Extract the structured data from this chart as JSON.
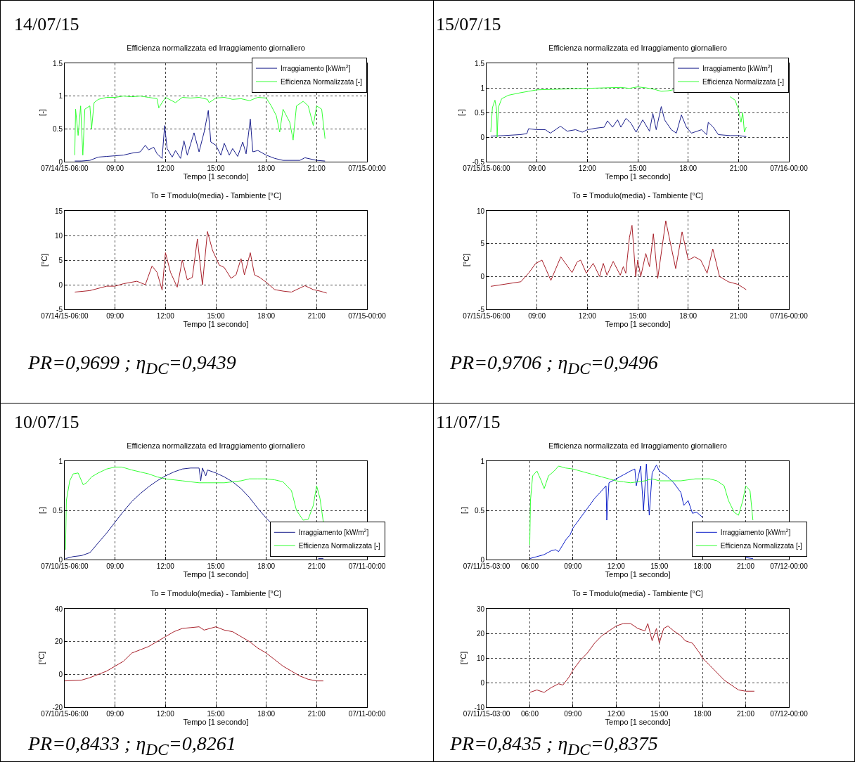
{
  "chart_data": [
    {
      "type": "line",
      "title": "Efficienza normalizzata ed Irraggiamento giornaliero",
      "xlabel": "Tempo [1 secondo]",
      "ylabel": "[-]",
      "annotations": [
        "14/07/15"
      ],
      "xlim": [
        6,
        24
      ],
      "xticks": [
        {
          "value": 6,
          "label": "07/14/15-06:00"
        },
        {
          "value": 9,
          "label": "09:00"
        },
        {
          "value": 12,
          "label": "12:00"
        },
        {
          "value": 15,
          "label": "15:00"
        },
        {
          "value": 18,
          "label": "18:00"
        },
        {
          "value": 21,
          "label": "21:00"
        },
        {
          "value": 24,
          "label": "07/15-00:00"
        }
      ],
      "ylim": [
        0,
        1.5
      ],
      "yticks": [
        0,
        0.5,
        1,
        1.5
      ],
      "grid": true,
      "legend": "top right",
      "marker": "none",
      "line_style": "solid",
      "series": [
        {
          "name": "Irraggiamento [kW/m$^{2}$]",
          "color": "#1a1f8c",
          "x": [
            6.6,
            7,
            7.5,
            8,
            8.5,
            9,
            9.5,
            10,
            10.5,
            10.8,
            11,
            11.3,
            11.5,
            11.8,
            11.95,
            12.1,
            12.4,
            12.6,
            12.9,
            13.1,
            13.3,
            13.7,
            14,
            14.3,
            14.55,
            14.7,
            15,
            15.3,
            15.5,
            15.8,
            16,
            16.3,
            16.6,
            16.8,
            17.05,
            17.2,
            17.5,
            18,
            18.5,
            19,
            20,
            20.3,
            21,
            21.5
          ],
          "values": [
            0.01,
            0.01,
            0.02,
            0.07,
            0.08,
            0.09,
            0.1,
            0.13,
            0.15,
            0.25,
            0.18,
            0.22,
            0.12,
            0.05,
            0.55,
            0.2,
            0.07,
            0.17,
            0.05,
            0.32,
            0.1,
            0.44,
            0.15,
            0.45,
            0.78,
            0.3,
            0.25,
            0.1,
            0.28,
            0.1,
            0.2,
            0.08,
            0.3,
            0.12,
            0.65,
            0.15,
            0.17,
            0.1,
            0.05,
            0.02,
            0.02,
            0.06,
            0.02,
            0.01
          ]
        },
        {
          "name": "Efficienza Normalizzata [-]",
          "color": "#33ff33",
          "x": [
            6.6,
            6.65,
            6.8,
            6.95,
            7.08,
            7.2,
            7.5,
            7.6,
            7.75,
            8,
            8.5,
            9,
            9.5,
            10,
            10.5,
            11,
            11.5,
            11.6,
            12,
            12.6,
            13,
            13.5,
            14,
            14.5,
            14.6,
            15,
            15.5,
            16,
            16.5,
            17,
            17.5,
            18,
            18.3,
            18.6,
            18.8,
            19,
            19.4,
            19.6,
            19.8,
            20.2,
            20.5,
            20.8,
            21,
            21.3,
            21.5
          ],
          "values": [
            0.1,
            0.8,
            0.4,
            0.85,
            0.1,
            0.8,
            0.85,
            0.5,
            0.9,
            0.95,
            0.98,
            0.98,
            1,
            0.99,
            1,
            0.98,
            0.96,
            0.82,
            0.98,
            0.9,
            0.98,
            0.97,
            0.98,
            0.95,
            0.9,
            0.97,
            0.98,
            0.95,
            0.96,
            0.93,
            0.98,
            0.97,
            0.85,
            0.7,
            0.45,
            0.8,
            0.6,
            0.33,
            0.85,
            0.92,
            0.85,
            0.55,
            0.85,
            0.8,
            0.35
          ]
        }
      ]
    },
    {
      "type": "line",
      "title": "To = Tmodulo(media) - Tambiente [°C]",
      "xlabel": "Tempo [1 secondo]",
      "ylabel": "[°C]",
      "annotations": [
        "PR=0,9699 ; η$_{DC}$=0,9439"
      ],
      "xlim": [
        6,
        24
      ],
      "xticks": [
        {
          "value": 6,
          "label": "07/14/15-06:00"
        },
        {
          "value": 9,
          "label": "09:00"
        },
        {
          "value": 12,
          "label": "12:00"
        },
        {
          "value": 15,
          "label": "15:00"
        },
        {
          "value": 18,
          "label": "18:00"
        },
        {
          "value": 21,
          "label": "21:00"
        },
        {
          "value": 24,
          "label": "07/15-00:00"
        }
      ],
      "ylim": [
        -5,
        15
      ],
      "yticks": [
        -5,
        0,
        5,
        10,
        15
      ],
      "grid": true,
      "marker": "none",
      "line_style": "solid",
      "series": [
        {
          "color": "#a8202a",
          "x": [
            6.6,
            7.5,
            8.5,
            9,
            9.5,
            10.3,
            10.8,
            11.2,
            11.5,
            11.8,
            12,
            12.3,
            12.7,
            13,
            13.3,
            13.6,
            13.9,
            14.2,
            14.5,
            14.8,
            15,
            15.2,
            15.5,
            15.9,
            16.2,
            16.5,
            16.7,
            17.05,
            17.3,
            17.6,
            18,
            18.5,
            19,
            19.5,
            20.3,
            20.8,
            21.2,
            21.6
          ],
          "values": [
            -1.5,
            -1.2,
            -0.3,
            -0.3,
            0.2,
            0.7,
            0,
            3.8,
            2.5,
            -1.1,
            6.5,
            2.5,
            -0.5,
            5,
            1,
            1.5,
            9.3,
            0,
            10.8,
            7,
            5.5,
            4,
            3.5,
            1.3,
            2,
            5.3,
            2,
            6.5,
            2,
            1.5,
            0.5,
            -1,
            -1.3,
            -1.5,
            -0.2,
            -1,
            -1.3,
            -1.7
          ]
        }
      ]
    },
    {
      "type": "line",
      "title": "Efficienza normalizzata ed Irraggiamento giornaliero",
      "xlabel": "Tempo [1 secondo]",
      "ylabel": "[-]",
      "annotations": [
        "15/07/15"
      ],
      "xlim": [
        6,
        24
      ],
      "xticks": [
        {
          "value": 6,
          "label": "07/15/15-06:00"
        },
        {
          "value": 9,
          "label": "09:00"
        },
        {
          "value": 12,
          "label": "12:00"
        },
        {
          "value": 15,
          "label": "15:00"
        },
        {
          "value": 18,
          "label": "18:00"
        },
        {
          "value": 21,
          "label": "21:00"
        },
        {
          "value": 24,
          "label": "07/16-00:00"
        }
      ],
      "ylim": [
        -0.5,
        1.5
      ],
      "yticks": [
        -0.5,
        0,
        0.5,
        1,
        1.5
      ],
      "grid": true,
      "legend": "top right",
      "marker": "none",
      "line_style": "solid",
      "series": [
        {
          "name": "Irraggiamento [kW/m$^{2}$]",
          "color": "#1a1f8c",
          "x": [
            6.25,
            7,
            8,
            8.4,
            8.5,
            9,
            9.5,
            9.8,
            10.4,
            10.8,
            11.3,
            11.7,
            12,
            12.5,
            13,
            13.2,
            13.5,
            13.8,
            14,
            14.3,
            14.6,
            14.9,
            15.3,
            15.7,
            15.9,
            16.1,
            16.4,
            16.6,
            17,
            17.3,
            17.6,
            17.9,
            18.2,
            18.8,
            19.1,
            19.2,
            19.5,
            19.8,
            20.5,
            21,
            21.46
          ],
          "values": [
            0.02,
            0.03,
            0.05,
            0.07,
            0.17,
            0.15,
            0.15,
            0.08,
            0.22,
            0.12,
            0.15,
            0.1,
            0.15,
            0.18,
            0.2,
            0.33,
            0.2,
            0.35,
            0.2,
            0.38,
            0.28,
            0.1,
            0.35,
            0.12,
            0.48,
            0.15,
            0.62,
            0.35,
            0.15,
            0.08,
            0.45,
            0.2,
            0.08,
            0.15,
            0.05,
            0.3,
            0.2,
            0.05,
            0.03,
            0.03,
            0.01
          ]
        },
        {
          "name": "Efficienza Normalizzata [-]",
          "color": "#33ff33",
          "x": [
            6.25,
            6.35,
            6.5,
            6.6,
            6.63,
            6.7,
            6.9,
            7.3,
            8,
            8.5,
            9,
            10,
            11,
            12,
            13,
            14,
            14.5,
            15,
            15.5,
            16,
            16.4,
            16.8,
            17.1,
            17.3,
            19,
            19.1,
            19.8,
            20.5,
            20.8,
            21,
            21.15,
            21.25,
            21.35,
            21.46
          ],
          "values": [
            0.1,
            0.6,
            0.75,
            0.55,
            0,
            0.6,
            0.78,
            0.85,
            0.9,
            0.93,
            0.96,
            0.97,
            0.98,
            0.99,
            1,
            1.01,
            0.99,
            1.02,
            1,
            0.97,
            0.93,
            0.94,
            0.96,
            null,
            null,
            null,
            null,
            0.82,
            0.75,
            0.55,
            0.3,
            0.5,
            0.1,
            0.2
          ]
        }
      ]
    },
    {
      "type": "line",
      "title": "To = Tmodulo(media) - Tambiente [°C]",
      "xlabel": "Tempo [1 secondo]",
      "ylabel": "[°C]",
      "annotations": [
        "PR=0,9706 ; η$_{DC}$=0,9496"
      ],
      "xlim": [
        6,
        24
      ],
      "xticks": [
        {
          "value": 6,
          "label": "07/15/15-06:00"
        },
        {
          "value": 9,
          "label": "09:00"
        },
        {
          "value": 12,
          "label": "12:00"
        },
        {
          "value": 15,
          "label": "15:00"
        },
        {
          "value": 18,
          "label": "18:00"
        },
        {
          "value": 21,
          "label": "21:00"
        },
        {
          "value": 24,
          "label": "07/16-00:00"
        }
      ],
      "ylim": [
        -5,
        10
      ],
      "yticks": [
        -5,
        0,
        5,
        10
      ],
      "grid": true,
      "marker": "none",
      "line_style": "solid",
      "series": [
        {
          "color": "#a8202a",
          "x": [
            6.25,
            8.04,
            8.5,
            8.93,
            9.3,
            9.83,
            10.42,
            11.09,
            11.39,
            11.6,
            11.94,
            12.35,
            12.73,
            12.95,
            13.17,
            13.54,
            13.96,
            14.14,
            14.29,
            14.51,
            14.66,
            14.88,
            15,
            15.18,
            15.48,
            15.7,
            15.93,
            16.19,
            16.67,
            17.26,
            17.64,
            18.01,
            18.38,
            18.75,
            19.13,
            19.47,
            19.87,
            20.39,
            20.96,
            21.46
          ],
          "values": [
            -1.5,
            -0.8,
            0.5,
            2,
            2.5,
            -0.6,
            3,
            0.6,
            2.2,
            2.5,
            0.5,
            2,
            0,
            2,
            0.2,
            2.3,
            0.2,
            1.5,
            0.5,
            6,
            7.8,
            0,
            2.5,
            0,
            3.5,
            1.5,
            6.5,
            -0.3,
            8.5,
            1.2,
            6.8,
            2.5,
            3,
            2.5,
            0.5,
            4.2,
            0,
            -0.8,
            -1.2,
            -2
          ]
        }
      ]
    },
    {
      "type": "line",
      "title": "Efficienza normalizzata ed Irraggiamento giornaliero",
      "xlabel": "Tempo [1 secondo]",
      "ylabel": "[-]",
      "annotations": [
        "10/07/15"
      ],
      "xlim": [
        6,
        24
      ],
      "xticks": [
        {
          "value": 6,
          "label": "07/10/15-06:00"
        },
        {
          "value": 9,
          "label": "09:00"
        },
        {
          "value": 12,
          "label": "12:00"
        },
        {
          "value": 15,
          "label": "15:00"
        },
        {
          "value": 18,
          "label": "18:00"
        },
        {
          "value": 21,
          "label": "21:00"
        },
        {
          "value": 24,
          "label": "07/11-00:00"
        }
      ],
      "ylim": [
        0,
        1
      ],
      "yticks": [
        0,
        0.5,
        1
      ],
      "grid": true,
      "legend": "bottom right",
      "marker": "none",
      "line_style": "solid",
      "series": [
        {
          "name": "Irraggiamento [kW/m$^{2}$]",
          "color": "#1a1f8c",
          "x": [
            6.05,
            6.5,
            7,
            7.5,
            8,
            8.5,
            9,
            9.5,
            10,
            10.5,
            11,
            11.5,
            12,
            12.5,
            13,
            13.5,
            14,
            14.1,
            14.2,
            14.4,
            14.5,
            15,
            15.5,
            16,
            16.5,
            17,
            17.5,
            18,
            18.3,
            18.5,
            21,
            21.1,
            21.4
          ],
          "values": [
            0.01,
            0.03,
            0.04,
            0.07,
            0.17,
            0.27,
            0.38,
            0.49,
            0.59,
            0.67,
            0.74,
            0.8,
            0.85,
            0.89,
            0.92,
            0.93,
            0.93,
            0.8,
            0.93,
            0.85,
            0.91,
            0.88,
            0.84,
            0.79,
            0.72,
            0.63,
            0.52,
            0.42,
            0.37,
            null,
            null,
            0.01,
            0.01
          ]
        },
        {
          "name": "Efficienza Normalizzata [-]",
          "color": "#33ff33",
          "x": [
            6.05,
            6.1,
            6.3,
            6.5,
            6.8,
            7.1,
            7.3,
            7.6,
            8,
            8.5,
            9,
            9.4,
            10,
            10.5,
            11,
            11.5,
            12,
            12.5,
            13,
            13.5,
            14,
            14.5,
            15,
            15.5,
            16,
            16.5,
            17,
            17.5,
            18,
            18.5,
            19,
            19.5,
            19.8,
            20.2,
            20.5,
            20.8,
            21,
            21.2,
            21.4
          ],
          "values": [
            0.1,
            0.6,
            0.8,
            0.87,
            0.88,
            0.76,
            0.78,
            0.84,
            0.88,
            0.92,
            0.94,
            0.94,
            0.91,
            0.89,
            0.87,
            0.84,
            0.82,
            0.81,
            0.8,
            0.79,
            0.78,
            0.78,
            0.78,
            0.78,
            0.79,
            0.8,
            0.82,
            0.82,
            0.82,
            0.81,
            0.79,
            0.7,
            0.5,
            0.4,
            0.41,
            0.55,
            0.75,
            0.62,
            0.38
          ]
        }
      ]
    },
    {
      "type": "line",
      "title": "To = Tmodulo(media) - Tambiente [°C]",
      "xlabel": "Tempo [1 secondo]",
      "ylabel": "[°C]",
      "annotations": [
        "PR=0,8433 ; η$_{DC}$=0,8261"
      ],
      "xlim": [
        6,
        24
      ],
      "xticks": [
        {
          "value": 6,
          "label": "07/10/15-06:00"
        },
        {
          "value": 9,
          "label": "09:00"
        },
        {
          "value": 12,
          "label": "12:00"
        },
        {
          "value": 15,
          "label": "15:00"
        },
        {
          "value": 18,
          "label": "18:00"
        },
        {
          "value": 21,
          "label": "21:00"
        },
        {
          "value": 24,
          "label": "07/11-00:00"
        }
      ],
      "ylim": [
        -20,
        40
      ],
      "yticks": [
        -20,
        0,
        20,
        40
      ],
      "grid": true,
      "marker": "none",
      "line_style": "solid",
      "series": [
        {
          "color": "#a8202a",
          "x": [
            6,
            7,
            7.5,
            8,
            8.5,
            9,
            9.5,
            10,
            10.5,
            11,
            11.5,
            12,
            12.5,
            13,
            13.5,
            14,
            14.3,
            15,
            15.5,
            16,
            16.5,
            17,
            17.5,
            18,
            18.5,
            19,
            19.5,
            20,
            20.5,
            21,
            21.4
          ],
          "values": [
            -4,
            -3.5,
            -2,
            0,
            2,
            5,
            8,
            13,
            15,
            17,
            20,
            23,
            26,
            28,
            28.5,
            29,
            27,
            29,
            27,
            26,
            23,
            20,
            16,
            13,
            9,
            5,
            2,
            -1,
            -3,
            -4,
            -4
          ]
        }
      ]
    },
    {
      "type": "line",
      "title": "Efficienza normalizzata ed Irraggiamento giornaliero",
      "xlabel": "Tempo [1 secondo]",
      "ylabel": "[-]",
      "annotations": [
        "11/07/15"
      ],
      "xlim": [
        3,
        24
      ],
      "xticks": [
        {
          "value": 3,
          "label": "07/11/15-03:00"
        },
        {
          "value": 6,
          "label": "06:00"
        },
        {
          "value": 9,
          "label": "09:00"
        },
        {
          "value": 12,
          "label": "12:00"
        },
        {
          "value": 15,
          "label": "15:00"
        },
        {
          "value": 18,
          "label": "18:00"
        },
        {
          "value": 21,
          "label": "21:00"
        },
        {
          "value": 24,
          "label": "07/12-00:00"
        }
      ],
      "ylim": [
        0,
        1
      ],
      "yticks": [
        0,
        0.5,
        1
      ],
      "grid": true,
      "legend": "bottom right",
      "marker": "none",
      "line_style": "solid",
      "series": [
        {
          "name": "Irraggiamento [kW/m$^{2}$]",
          "color": "#0d1fc8",
          "x": [
            6,
            6.5,
            7,
            7.5,
            7.8,
            8,
            8.3,
            8.5,
            8.8,
            9,
            9.5,
            10,
            10.5,
            11,
            11.3,
            11.35,
            11.5,
            12,
            12.5,
            13,
            13.3,
            13.4,
            13.7,
            13.9,
            14.1,
            14.3,
            14.5,
            14.8,
            15,
            15.5,
            16,
            16.5,
            16.7,
            17,
            17.3,
            17.6,
            18,
            18.3,
            20.8,
            21,
            21.5
          ],
          "values": [
            0.01,
            0.03,
            0.05,
            0.09,
            0.1,
            0.08,
            0.15,
            0.2,
            0.25,
            0.32,
            0.42,
            0.52,
            0.62,
            0.7,
            0.75,
            0.4,
            0.78,
            0.82,
            0.86,
            0.9,
            0.92,
            0.75,
            0.95,
            0.5,
            0.97,
            0.45,
            0.88,
            0.96,
            0.9,
            0.85,
            0.78,
            0.68,
            0.55,
            0.6,
            0.47,
            0.48,
            0.43,
            null,
            null,
            0.02,
            0.01
          ]
        },
        {
          "name": "Efficienza Normalizzata [-]",
          "color": "#33ff33",
          "x": [
            6,
            6.05,
            6.2,
            6.5,
            6.8,
            7,
            7.3,
            7.7,
            8,
            8.5,
            9,
            9.5,
            10,
            10.5,
            11,
            11.5,
            12,
            12.5,
            13,
            13.5,
            14,
            14.5,
            15,
            15.5,
            16,
            16.5,
            17,
            17.5,
            18,
            18.5,
            19,
            19.5,
            19.8,
            20.2,
            20.5,
            20.8,
            21,
            21.3,
            21.5
          ],
          "values": [
            0.15,
            0.6,
            0.85,
            0.9,
            0.8,
            0.72,
            0.85,
            0.9,
            0.95,
            0.93,
            0.92,
            0.9,
            0.88,
            0.86,
            0.84,
            0.82,
            0.8,
            0.79,
            0.78,
            0.79,
            0.8,
            0.82,
            0.8,
            0.8,
            0.8,
            0.8,
            0.81,
            0.82,
            0.82,
            0.82,
            0.8,
            0.75,
            0.6,
            0.48,
            0.45,
            0.6,
            0.75,
            0.7,
            0.4
          ]
        }
      ]
    },
    {
      "type": "line",
      "title": "To = Tmodulo(media) - Tambiente [°C]",
      "xlabel": "Tempo [1 secondo]",
      "ylabel": "[°C]",
      "annotations": [
        "PR=0,8435 ; η$_{DC}$=0,8375"
      ],
      "xlim": [
        3,
        24
      ],
      "xticks": [
        {
          "value": 3,
          "label": "07/11/15-03:00"
        },
        {
          "value": 6,
          "label": "06:00"
        },
        {
          "value": 9,
          "label": "09:00"
        },
        {
          "value": 12,
          "label": "12:00"
        },
        {
          "value": 15,
          "label": "15:00"
        },
        {
          "value": 18,
          "label": "18:00"
        },
        {
          "value": 21,
          "label": "21:00"
        },
        {
          "value": 24,
          "label": "07/12-00:00"
        }
      ],
      "ylim": [
        -10,
        30
      ],
      "yticks": [
        -10,
        0,
        10,
        20,
        30
      ],
      "grid": true,
      "marker": "none",
      "line_style": "solid",
      "series": [
        {
          "color": "#a8202a",
          "x": [
            6,
            6.5,
            7,
            7.5,
            8,
            8.3,
            8.7,
            9,
            9.5,
            10,
            10.5,
            11,
            11.5,
            12,
            12.5,
            13,
            13.5,
            14,
            14.2,
            14.5,
            14.8,
            15,
            15.3,
            15.6,
            16,
            16.5,
            16.8,
            17.3,
            17.8,
            18,
            18.5,
            19,
            19.5,
            20,
            20.5,
            21,
            21.6
          ],
          "values": [
            -4,
            -3,
            -4,
            -2,
            -0.5,
            -1,
            2,
            5,
            9,
            12,
            16,
            19,
            21,
            23,
            24,
            24,
            22,
            21,
            24,
            17,
            22,
            16,
            22,
            23,
            21,
            19,
            17,
            16,
            12,
            10,
            7,
            4,
            1,
            -1,
            -3,
            -3.5,
            -3.5
          ]
        }
      ]
    }
  ]
}
